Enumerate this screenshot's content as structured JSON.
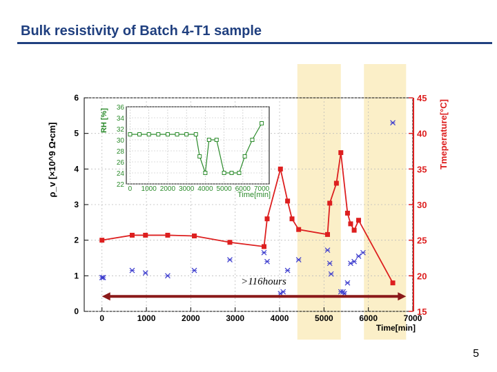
{
  "slide": {
    "title": "Bulk resistivity of Batch 4-T1 sample",
    "page_number": "5"
  },
  "chart_data": [
    {
      "type": "scatter",
      "xlabel": "Time[min]",
      "ylabel": "ρ_v [×10^9 Ω•cm]",
      "y2label": "Tmeperature[°C]",
      "xlim": [
        -400,
        7000
      ],
      "ylim": [
        0,
        6
      ],
      "y2lim": [
        15,
        45
      ],
      "x_ticks": [
        0,
        1000,
        2000,
        3000,
        4000,
        5000,
        6000,
        7000
      ],
      "y_ticks": [
        0,
        1,
        2,
        3,
        4,
        5,
        6
      ],
      "y2_ticks": [
        15,
        20,
        25,
        30,
        35,
        40,
        45
      ],
      "grid": true,
      "series": [
        {
          "axis": "left",
          "marker": "x",
          "color": "#3a3acd",
          "x": [
            0,
            30,
            680,
            980,
            1480,
            2080,
            2880,
            3650,
            3720,
            4020,
            4080,
            4180,
            4430,
            5080,
            5130,
            5160,
            5380,
            5430,
            5460,
            5530,
            5600,
            5680,
            5780,
            5880,
            6550
          ],
          "y": [
            0.95,
            0.95,
            1.15,
            1.08,
            1.0,
            1.15,
            1.45,
            1.65,
            1.4,
            0.5,
            0.55,
            1.15,
            1.45,
            1.72,
            1.35,
            1.05,
            0.55,
            0.55,
            0.5,
            0.8,
            1.35,
            1.4,
            1.55,
            1.65,
            5.3
          ]
        },
        {
          "axis": "right",
          "marker": "square",
          "color": "#dd1f1f",
          "x": [
            0,
            680,
            980,
            1480,
            2080,
            2880,
            3650,
            3720,
            4020,
            4180,
            4280,
            4430,
            5080,
            5130,
            5280,
            5380,
            5530,
            5600,
            5680,
            5780,
            6550
          ],
          "y": [
            25.0,
            25.7,
            25.7,
            25.7,
            25.6,
            24.7,
            24.1,
            28.0,
            35.0,
            30.5,
            28.0,
            26.5,
            25.8,
            30.2,
            33.0,
            37.3,
            28.8,
            27.3,
            26.4,
            27.8,
            19.0
          ]
        }
      ],
      "shaded_intervals": [
        [
          4400,
          5380
        ],
        [
          5900,
          6850
        ]
      ],
      "annotation": {
        "text": ">116hours",
        "from": 0,
        "to": 6850,
        "y": 0.42
      }
    },
    {
      "type": "line",
      "xlabel": "Time[min]",
      "ylabel": "RH [%]",
      "xlim": [
        -200,
        7400
      ],
      "ylim": [
        22,
        36
      ],
      "x_ticks": [
        0,
        1000,
        2000,
        3000,
        4000,
        5000,
        6000,
        7000
      ],
      "y_ticks": [
        22,
        24,
        26,
        28,
        30,
        32,
        34,
        36
      ],
      "grid": true,
      "series": [
        {
          "marker": "open-square",
          "color": "#2a8a2a",
          "x": [
            0,
            500,
            1000,
            1500,
            2000,
            2500,
            3000,
            3500,
            3700,
            4000,
            4200,
            4600,
            5000,
            5400,
            5800,
            6100,
            6500,
            7000
          ],
          "y": [
            31,
            31,
            31,
            31,
            31,
            31,
            31,
            31,
            27,
            24,
            30,
            30,
            24,
            24,
            24,
            27,
            30,
            33
          ]
        }
      ]
    }
  ]
}
